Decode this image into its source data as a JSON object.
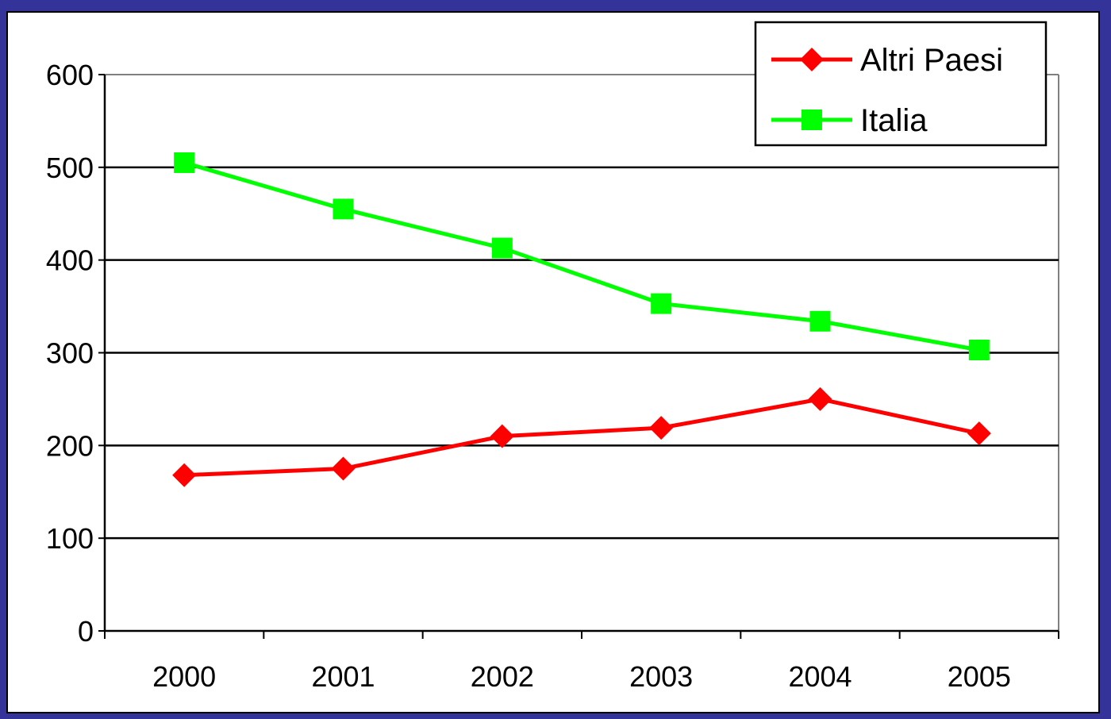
{
  "chart_data": {
    "type": "line",
    "title": "",
    "xlabel": "",
    "ylabel": "",
    "categories": [
      "2000",
      "2001",
      "2002",
      "2003",
      "2004",
      "2005"
    ],
    "ylim": [
      0,
      600
    ],
    "yticks": [
      0,
      100,
      200,
      300,
      400,
      500,
      600
    ],
    "ytick_labels": [
      "0",
      "100",
      "200",
      "300",
      "400",
      "500",
      "600"
    ],
    "grid": true,
    "legend": "top-right",
    "series": [
      {
        "name": "Altri Paesi",
        "values": [
          168,
          175,
          210,
          219,
          250,
          213
        ],
        "color": "#ff0000",
        "marker": "diamond"
      },
      {
        "name": "Italia",
        "values": [
          505,
          455,
          413,
          353,
          334,
          303
        ],
        "color": "#00ff00",
        "marker": "square"
      }
    ]
  },
  "colors": {
    "background": "#333399",
    "plot_background": "#ffffff",
    "gridline": "#000000"
  }
}
